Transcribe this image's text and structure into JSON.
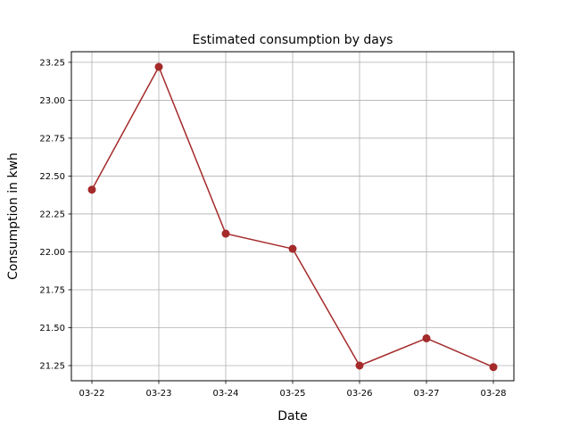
{
  "chart_data": {
    "type": "line",
    "title": "Estimated consumption by days",
    "xlabel": "Date",
    "ylabel": "Consumption in kwh",
    "categories": [
      "03-22",
      "03-23",
      "03-24",
      "03-25",
      "03-26",
      "03-27",
      "03-28"
    ],
    "series": [
      {
        "values": [
          22.41,
          23.22,
          22.12,
          22.02,
          21.25,
          21.43,
          21.24
        ],
        "color": "#a52a2a",
        "marker": "circle"
      }
    ],
    "yticks": [
      21.25,
      21.5,
      21.75,
      22.0,
      22.25,
      22.5,
      22.75,
      23.0,
      23.25
    ],
    "ytick_labels": [
      "21.25",
      "21.50",
      "21.75",
      "22.00",
      "22.25",
      "22.50",
      "22.75",
      "23.00",
      "23.25"
    ],
    "ylim": [
      21.15,
      23.32
    ],
    "grid": true,
    "legend": false
  }
}
